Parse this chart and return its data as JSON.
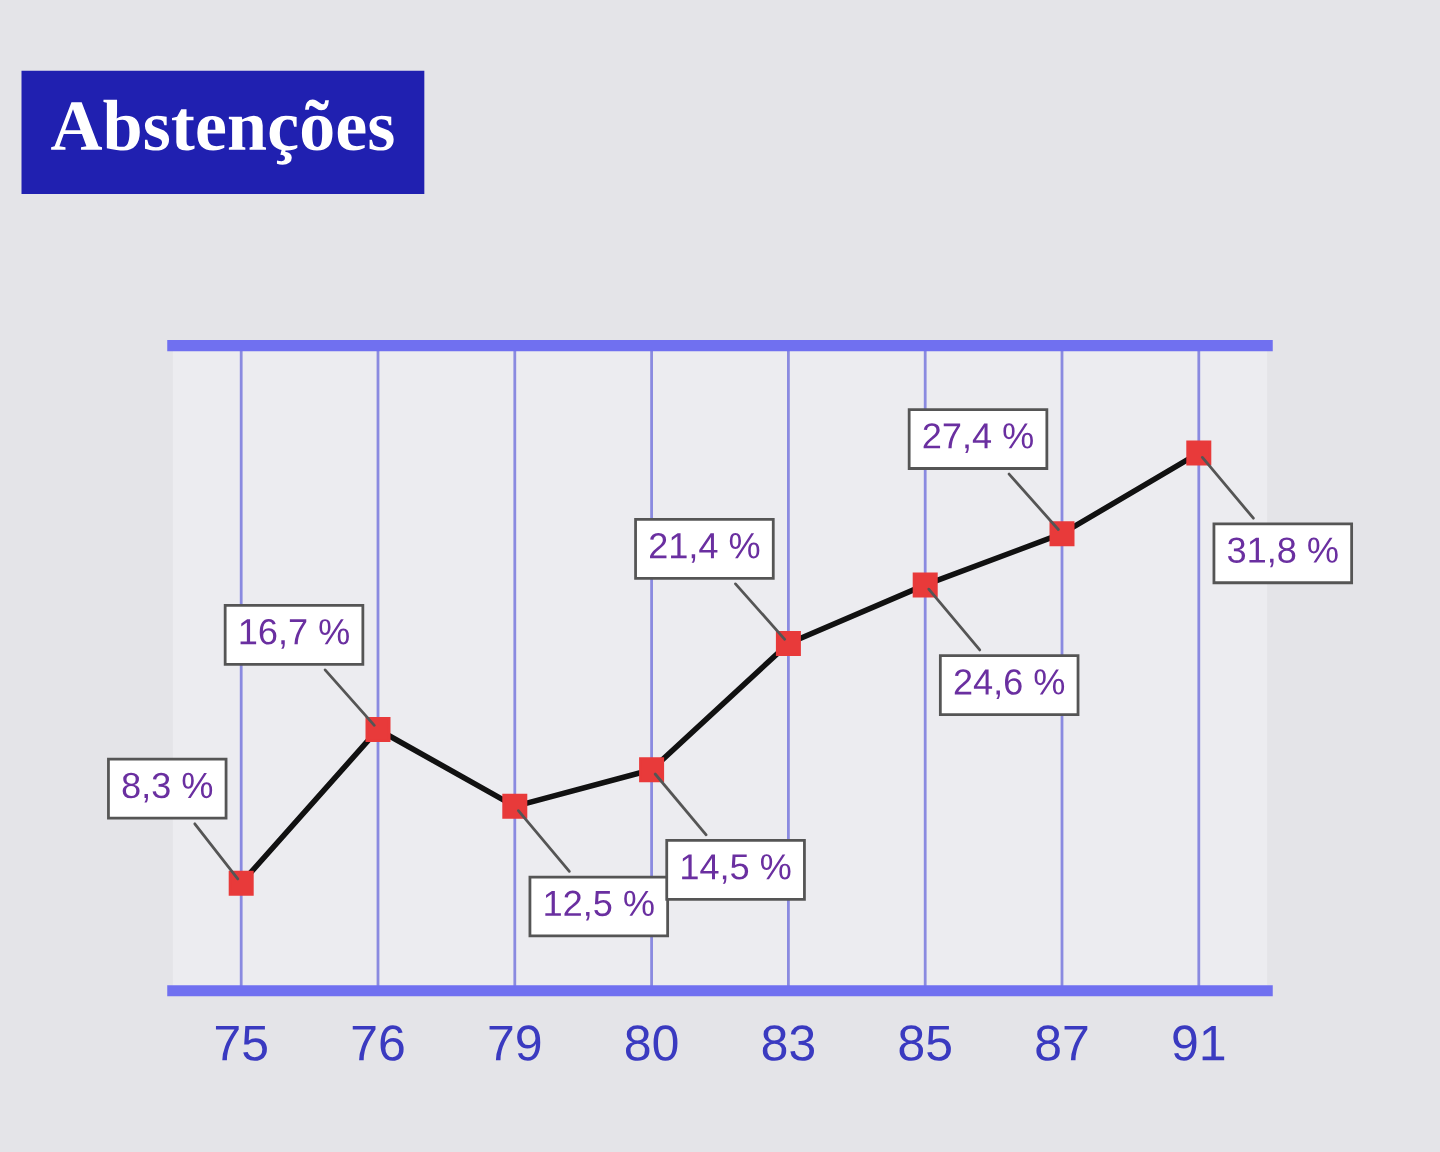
{
  "chart_data": {
    "type": "line",
    "title": "Abstenções",
    "categories": [
      "75",
      "76",
      "79",
      "80",
      "83",
      "85",
      "87",
      "91"
    ],
    "series": [
      {
        "color": "#111111",
        "values": [
          8.3,
          16.7,
          12.5,
          14.5,
          21.4,
          24.6,
          27.4,
          31.8
        ],
        "value_labels": [
          "8,3 %",
          "16,7 %",
          "12,5 %",
          "14,5 %",
          "21,4 %",
          "24,6 %",
          "27,4 %",
          "31,8 %"
        ]
      }
    ],
    "marker": "square",
    "grid": "x",
    "legend": false,
    "tick_labels": "x"
  }
}
